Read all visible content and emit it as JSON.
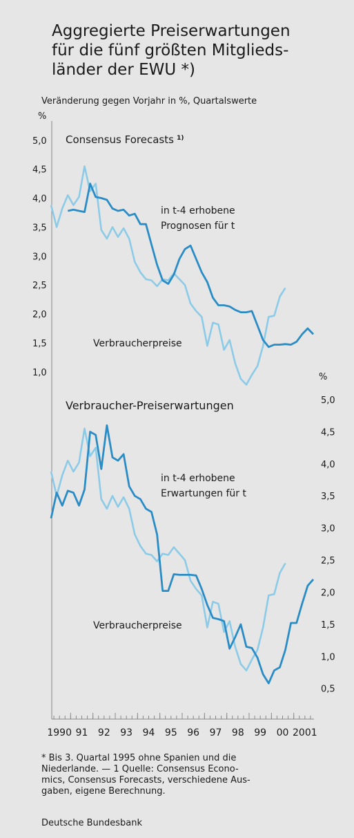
{
  "title": [
    "Aggregierte Preiserwartungen",
    "für die fünf größten Mitglieds-",
    "länder der EWU *)"
  ],
  "subtitle": "Veränderung gegen Vorjahr in %, Quartalswerte",
  "chart_data": [
    {
      "type": "line",
      "panel_title": "Consensus Forecasts",
      "panel_title_note": "1)",
      "y_unit": "%",
      "x": [
        1990.125,
        1990.375,
        1990.625,
        1990.875,
        1991.125,
        1991.375,
        1991.625,
        1991.875,
        1992.125,
        1992.375,
        1992.625,
        1992.875,
        1993.125,
        1993.375,
        1993.625,
        1993.875,
        1994.125,
        1994.375,
        1994.625,
        1994.875,
        1995.125,
        1995.375,
        1995.625,
        1995.875,
        1996.125,
        1996.375,
        1996.625,
        1996.875,
        1997.125,
        1997.375,
        1997.625,
        1997.875,
        1998.125,
        1998.375,
        1998.625,
        1998.875,
        1999.125,
        1999.375,
        1999.625,
        1999.875,
        2000.125,
        2000.375,
        2000.625,
        2000.875,
        2001.125,
        2001.375,
        2001.625,
        2001.875
      ],
      "xlim": [
        1990,
        2002
      ],
      "ylim": [
        0.7,
        5.2
      ],
      "yticks": [
        {
          "value": 5,
          "label": "5,0"
        },
        {
          "value": 4.5,
          "label": "4,5"
        },
        {
          "value": 4,
          "label": "4,0"
        },
        {
          "value": 3.5,
          "label": "3,5"
        },
        {
          "value": 3,
          "label": "3,0"
        },
        {
          "value": 2.5,
          "label": "2,5"
        },
        {
          "value": 2,
          "label": "2,0"
        },
        {
          "value": 1.5,
          "label": "1,5"
        },
        {
          "value": 1,
          "label": "1,0"
        }
      ],
      "series": [
        {
          "name": "Verbraucherpreise",
          "color": "#8ccbe8",
          "values": [
            3.88,
            3.5,
            3.82,
            4.05,
            3.88,
            4.02,
            4.55,
            4.12,
            4.25,
            3.45,
            3.3,
            3.5,
            3.33,
            3.48,
            3.3,
            2.9,
            2.72,
            2.6,
            2.58,
            2.48,
            2.6,
            2.58,
            2.7,
            2.6,
            2.5,
            2.18,
            2.05,
            1.95,
            1.45,
            1.85,
            1.82,
            1.38,
            1.55,
            1.15,
            0.88,
            0.78,
            0.95,
            1.1,
            1.45,
            1.95,
            1.97,
            2.3,
            2.45,
            null,
            null,
            null,
            null,
            null
          ]
        },
        {
          "name": [
            "in t-4 erhobene",
            "Prognosen für t"
          ],
          "color": "#2a8cc6",
          "values": [
            null,
            null,
            null,
            3.78,
            3.8,
            3.78,
            3.76,
            4.25,
            4.02,
            4.0,
            3.97,
            3.82,
            3.78,
            3.8,
            3.7,
            3.73,
            3.55,
            3.55,
            3.2,
            2.85,
            2.58,
            2.52,
            2.68,
            2.95,
            3.12,
            3.18,
            2.95,
            2.72,
            2.55,
            2.28,
            2.15,
            2.15,
            2.13,
            2.07,
            2.03,
            2.03,
            2.05,
            1.8,
            1.55,
            1.43,
            1.47,
            1.47,
            1.48,
            1.47,
            1.52,
            1.65,
            1.75,
            1.65
          ]
        }
      ]
    },
    {
      "type": "line",
      "panel_title": "Verbraucher-Preiserwartungen",
      "y_unit": "%",
      "x": [
        1990.125,
        1990.375,
        1990.625,
        1990.875,
        1991.125,
        1991.375,
        1991.625,
        1991.875,
        1992.125,
        1992.375,
        1992.625,
        1992.875,
        1993.125,
        1993.375,
        1993.625,
        1993.875,
        1994.125,
        1994.375,
        1994.625,
        1994.875,
        1995.125,
        1995.375,
        1995.625,
        1995.875,
        1996.125,
        1996.375,
        1996.625,
        1996.875,
        1997.125,
        1997.375,
        1997.625,
        1997.875,
        1998.125,
        1998.375,
        1998.625,
        1998.875,
        1999.125,
        1999.375,
        1999.625,
        1999.875,
        2000.125,
        2000.375,
        2000.625,
        2000.875,
        2001.125,
        2001.375,
        2001.625,
        2001.875
      ],
      "xlim": [
        1990,
        2002
      ],
      "ylim": [
        0.4,
        5.0
      ],
      "xticks": [
        1990,
        {
          "value": 1991,
          "label": "91"
        },
        {
          "value": 1992,
          "label": "92"
        },
        {
          "value": 1993,
          "label": "93"
        },
        {
          "value": 1994,
          "label": "94"
        },
        {
          "value": 1995,
          "label": "95"
        },
        {
          "value": 1996,
          "label": "96"
        },
        {
          "value": 1997,
          "label": "97"
        },
        {
          "value": 1998,
          "label": "98"
        },
        {
          "value": 1999,
          "label": "99"
        },
        {
          "value": 2000,
          "label": "00"
        },
        2001
      ],
      "yticks": [
        {
          "value": 5,
          "label": "5,0"
        },
        {
          "value": 4.5,
          "label": "4,5"
        },
        {
          "value": 4,
          "label": "4,0"
        },
        {
          "value": 3.5,
          "label": "3,5"
        },
        {
          "value": 3,
          "label": "3,0"
        },
        {
          "value": 2.5,
          "label": "2,5"
        },
        {
          "value": 2,
          "label": "2,0"
        },
        {
          "value": 1.5,
          "label": "1,5"
        },
        {
          "value": 1,
          "label": "1,0"
        },
        {
          "value": 0.5,
          "label": "0,5"
        }
      ],
      "series": [
        {
          "name": "Verbraucherpreise",
          "color": "#8ccbe8",
          "values": [
            3.88,
            3.5,
            3.82,
            4.05,
            3.88,
            4.02,
            4.55,
            4.12,
            4.25,
            3.45,
            3.3,
            3.5,
            3.33,
            3.48,
            3.3,
            2.9,
            2.72,
            2.6,
            2.58,
            2.48,
            2.6,
            2.58,
            2.7,
            2.6,
            2.5,
            2.18,
            2.05,
            1.95,
            1.45,
            1.85,
            1.82,
            1.38,
            1.55,
            1.15,
            0.88,
            0.78,
            0.95,
            1.1,
            1.45,
            1.95,
            1.97,
            2.3,
            2.45,
            null,
            null,
            null,
            null,
            null
          ]
        },
        {
          "name": [
            "in t-4 erhobene",
            "Erwartungen für t"
          ],
          "color": "#2a8cc6",
          "values": [
            3.15,
            3.55,
            3.35,
            3.58,
            3.55,
            3.35,
            3.6,
            4.5,
            4.45,
            3.92,
            4.6,
            4.1,
            4.05,
            4.15,
            3.65,
            3.5,
            3.45,
            3.3,
            3.25,
            2.9,
            2.02,
            2.02,
            2.28,
            2.27,
            2.27,
            2.27,
            2.26,
            2.05,
            1.8,
            1.6,
            1.58,
            1.55,
            1.12,
            1.3,
            1.5,
            1.15,
            1.13,
            0.98,
            0.72,
            0.58,
            0.78,
            0.83,
            1.1,
            1.52,
            1.52,
            1.82,
            2.1,
            2.2
          ]
        }
      ]
    }
  ],
  "footnote": [
    "* Bis 3. Quartal 1995 ohne Spanien und die",
    "Niederlande. — 1 Quelle: Consensus Econo-",
    "mics, Consensus Forecasts, verschiedene Aus-",
    "gaben, eigene Berechnung."
  ],
  "source": "Deutsche Bundesbank"
}
